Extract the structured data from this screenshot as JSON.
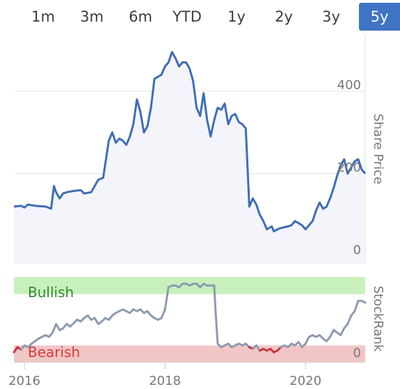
{
  "tabs": [
    {
      "label": "1m",
      "active": false
    },
    {
      "label": "3m",
      "active": false
    },
    {
      "label": "6m",
      "active": false
    },
    {
      "label": "YTD",
      "active": false
    },
    {
      "label": "1y",
      "active": false
    },
    {
      "label": "2y",
      "active": false
    },
    {
      "label": "3y",
      "active": false
    },
    {
      "label": "5y",
      "active": true
    }
  ],
  "colors": {
    "accent": "#3f73c4",
    "price_line": "#3f6db5",
    "price_fill": "#f3f5fb",
    "bullish_band": "#c8f0bc",
    "bearish_band": "#f2c6c6",
    "bullish_text": "#2e8b2e",
    "bearish_text": "#d63a3a",
    "rank_line_neutral": "#8d9bb0",
    "rank_line_bearish": "#c9343f",
    "grid": "#e4e4e4"
  },
  "chart_data": [
    {
      "type": "line",
      "ylabel": "Share Price",
      "ylim": [
        0,
        520
      ],
      "yticks": [
        "0",
        "200",
        "400"
      ],
      "xlim": [
        2015.85,
        2020.85
      ],
      "series": [
        {
          "x": [
            2015.85,
            2015.95,
            2016.0,
            2016.05,
            2016.15,
            2016.3,
            2016.38,
            2016.42,
            2016.45,
            2016.5,
            2016.55,
            2016.6,
            2016.7,
            2016.8,
            2016.85,
            2016.95,
            2017.05,
            2017.12,
            2017.2,
            2017.25,
            2017.3,
            2017.35,
            2017.4,
            2017.45,
            2017.5,
            2017.55,
            2017.6,
            2017.65,
            2017.7,
            2017.75,
            2017.8,
            2017.85,
            2017.9,
            2017.95,
            2018.0,
            2018.05,
            2018.1,
            2018.15,
            2018.2,
            2018.25,
            2018.3,
            2018.35,
            2018.4,
            2018.45,
            2018.5,
            2018.55,
            2018.6,
            2018.65,
            2018.7,
            2018.75,
            2018.8,
            2018.85,
            2018.9,
            2018.95,
            2019.0,
            2019.05,
            2019.1,
            2019.15,
            2019.2,
            2019.25,
            2019.3,
            2019.35,
            2019.4,
            2019.45,
            2019.5,
            2019.52,
            2019.55,
            2019.6,
            2019.65,
            2019.7,
            2019.75,
            2019.8,
            2019.85,
            2019.9,
            2019.95,
            2020.0,
            2020.05,
            2020.1,
            2020.15,
            2020.2,
            2020.25,
            2020.3,
            2020.35,
            2020.4,
            2020.45,
            2020.5,
            2020.55,
            2020.6,
            2020.65,
            2020.7,
            2020.75,
            2020.8,
            2020.85
          ],
          "values": [
            120,
            122,
            118,
            125,
            122,
            120,
            115,
            170,
            155,
            140,
            152,
            155,
            158,
            160,
            152,
            155,
            185,
            190,
            280,
            300,
            275,
            285,
            280,
            270,
            290,
            320,
            380,
            350,
            300,
            315,
            360,
            430,
            435,
            440,
            460,
            470,
            495,
            480,
            460,
            470,
            470,
            455,
            425,
            360,
            340,
            395,
            330,
            290,
            330,
            360,
            355,
            370,
            320,
            340,
            345,
            325,
            320,
            310,
            120,
            140,
            125,
            100,
            85,
            65,
            70,
            72,
            60,
            65,
            68,
            70,
            72,
            75,
            85,
            80,
            75,
            65,
            75,
            85,
            110,
            130,
            115,
            120,
            140,
            165,
            195,
            220,
            235,
            200,
            215,
            230,
            235,
            210,
            200
          ]
        }
      ]
    },
    {
      "type": "line",
      "ylabel": "StockRank",
      "ylim": [
        0,
        100
      ],
      "yticks": [
        "0"
      ],
      "xlim": [
        2015.85,
        2020.85
      ],
      "xticks": [
        "2016",
        "2018",
        "2020"
      ],
      "bands": [
        {
          "label": "Bullish",
          "from": 80,
          "to": 100
        },
        {
          "label": "Bearish",
          "from": 0,
          "to": 20
        }
      ],
      "series": [
        {
          "x": [
            2015.85,
            2015.9,
            2015.95,
            2016.0,
            2016.05,
            2016.1,
            2016.15,
            2016.2,
            2016.25,
            2016.3,
            2016.35,
            2016.4,
            2016.45,
            2016.5,
            2016.55,
            2016.6,
            2016.65,
            2016.7,
            2016.75,
            2016.8,
            2016.85,
            2016.9,
            2016.95,
            2017.0,
            2017.05,
            2017.1,
            2017.15,
            2017.2,
            2017.25,
            2017.3,
            2017.35,
            2017.4,
            2017.45,
            2017.5,
            2017.55,
            2017.6,
            2017.65,
            2017.7,
            2017.75,
            2017.8,
            2017.85,
            2017.9,
            2017.95,
            2018.0,
            2018.05,
            2018.1,
            2018.15,
            2018.2,
            2018.25,
            2018.3,
            2018.35,
            2018.4,
            2018.45,
            2018.5,
            2018.55,
            2018.6,
            2018.65,
            2018.7,
            2018.72,
            2018.75,
            2018.8,
            2018.85,
            2018.9,
            2018.95,
            2019.0,
            2019.05,
            2019.1,
            2019.15,
            2019.2,
            2019.25,
            2019.3,
            2019.35,
            2019.4,
            2019.45,
            2019.5,
            2019.55,
            2019.6,
            2019.65,
            2019.7,
            2019.75,
            2019.8,
            2019.85,
            2019.9,
            2019.95,
            2020.0,
            2020.05,
            2020.1,
            2020.15,
            2020.2,
            2020.25,
            2020.3,
            2020.35,
            2020.4,
            2020.45,
            2020.5,
            2020.55,
            2020.6,
            2020.65,
            2020.7,
            2020.75,
            2020.8,
            2020.85
          ],
          "values": [
            12,
            18,
            15,
            20,
            18,
            22,
            25,
            28,
            30,
            32,
            30,
            35,
            45,
            38,
            40,
            45,
            42,
            46,
            50,
            48,
            52,
            55,
            50,
            52,
            45,
            48,
            52,
            50,
            55,
            58,
            60,
            62,
            60,
            58,
            62,
            60,
            62,
            58,
            60,
            55,
            52,
            50,
            52,
            62,
            88,
            90,
            90,
            88,
            92,
            92,
            90,
            92,
            92,
            88,
            92,
            90,
            90,
            90,
            60,
            22,
            18,
            20,
            22,
            18,
            20,
            22,
            20,
            22,
            18,
            16,
            20,
            14,
            16,
            14,
            16,
            12,
            14,
            18,
            20,
            18,
            22,
            20,
            24,
            18,
            22,
            30,
            32,
            30,
            32,
            28,
            25,
            30,
            38,
            35,
            32,
            40,
            45,
            55,
            60,
            72,
            72,
            70
          ]
        }
      ]
    }
  ]
}
